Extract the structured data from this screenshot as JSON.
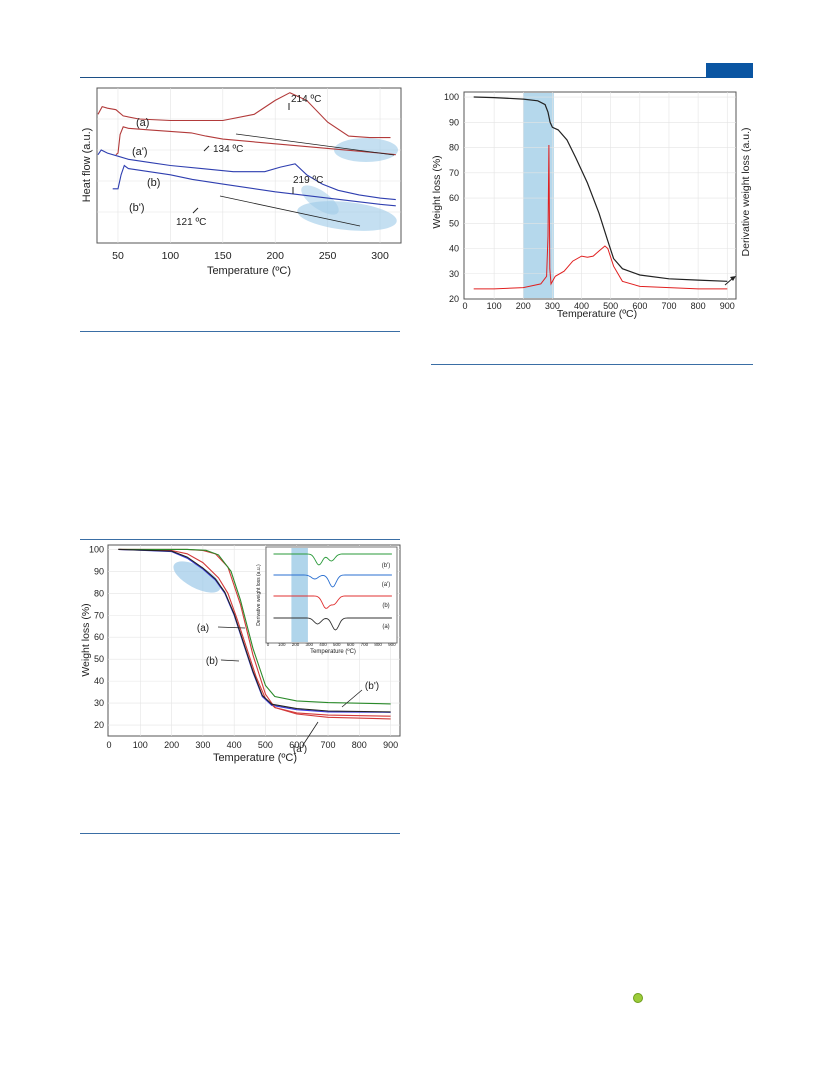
{
  "figures": [
    {
      "chart_data": {
        "type": "line",
        "xlabel": "Temperature (ºC)",
        "ylabel": "Heat flow (a.u.)",
        "xlim": [
          30,
          320
        ],
        "x_ticks": [
          "50",
          "100",
          "150",
          "200",
          "250",
          "300"
        ],
        "grid": true,
        "series": [
          {
            "name": "(a)",
            "color": "#b23a3a",
            "x": [
              31,
              35,
              40,
              48,
              55,
              70,
              100,
              150,
              180,
              200,
              214,
              230,
              250,
              270,
              290,
              310
            ],
            "y": [
              0.83,
              0.88,
              0.87,
              0.86,
              0.82,
              0.8,
              0.79,
              0.79,
              0.83,
              0.92,
              0.97,
              0.92,
              0.78,
              0.69,
              0.68,
              0.68
            ]
          },
          {
            "name": "(a')",
            "color": "#b23a3a",
            "x": [
              48,
              50,
              52,
              55,
              60,
              80,
              100,
              120,
              134,
              150,
              200,
              250,
              300,
              315
            ],
            "y": [
              0.57,
              0.58,
              0.7,
              0.75,
              0.74,
              0.73,
              0.72,
              0.71,
              0.69,
              0.67,
              0.64,
              0.61,
              0.58,
              0.57
            ]
          },
          {
            "name": "(b)",
            "color": "#2f3fb0",
            "x": [
              31,
              34,
              40,
              50,
              60,
              80,
              100,
              130,
              160,
              190,
              205,
              219,
              230,
              245,
              260,
              280,
              300,
              315
            ],
            "y": [
              0.57,
              0.6,
              0.58,
              0.56,
              0.54,
              0.52,
              0.5,
              0.48,
              0.46,
              0.46,
              0.49,
              0.51,
              0.44,
              0.38,
              0.34,
              0.31,
              0.29,
              0.28
            ]
          },
          {
            "name": "(b')",
            "color": "#2f3fb0",
            "x": [
              45,
              50,
              53,
              56,
              60,
              80,
              100,
              121,
              150,
              200,
              250,
              300,
              315
            ],
            "y": [
              0.35,
              0.35,
              0.44,
              0.5,
              0.48,
              0.46,
              0.44,
              0.41,
              0.38,
              0.33,
              0.29,
              0.25,
              0.24
            ]
          }
        ],
        "annotations": [
          "214 ºC",
          "134 ºC",
          "219 ºC",
          "121 ºC"
        ]
      }
    },
    {
      "chart_data": {
        "type": "line",
        "xlabel": "Temperature (ºC)",
        "ylabel": "Weight loss (%)",
        "y2label": "Derivative weight loss (a.u.)",
        "xlim": [
          0,
          930
        ],
        "ylim": [
          20,
          102
        ],
        "x_ticks": [
          "0",
          "100",
          "200",
          "300",
          "400",
          "500",
          "600",
          "700",
          "800",
          "900"
        ],
        "y_ticks": [
          "20",
          "30",
          "40",
          "50",
          "60",
          "70",
          "80",
          "90",
          "100"
        ],
        "grid": true,
        "highlight_band": [
          200,
          305
        ],
        "series": [
          {
            "name": "",
            "color": "#222222",
            "x": [
              30,
              100,
              200,
              250,
              275,
              285,
              292,
              300,
              320,
              350,
              380,
              420,
              460,
              490,
              510,
              540,
              600,
              700,
              800,
              900
            ],
            "y": [
              100,
              99.8,
              99.2,
              98.5,
              97,
              94,
              90,
              88,
              87,
              83,
              76,
              66,
              54,
              43,
              36,
              32,
              29.5,
              28,
              27.5,
              27
            ]
          },
          {
            "name": "",
            "color": "#e02020",
            "x": [
              30,
              100,
              200,
              260,
              280,
              285,
              288,
              291,
              295,
              310,
              340,
              370,
              400,
              420,
              440,
              460,
              480,
              490,
              510,
              540,
              600,
              700,
              800,
              900
            ],
            "y": [
              24,
              24,
              24.5,
              26,
              29,
              45,
              81,
              32,
              26,
              29,
              31,
              35,
              37,
              36.5,
              37,
              39,
              41,
              40,
              33,
              27,
              25,
              24.5,
              24,
              24
            ]
          }
        ]
      }
    },
    {
      "chart_data": {
        "type": "line",
        "xlabel": "Temperature (ºC)",
        "ylabel": "Weight loss (%)",
        "xlim": [
          0,
          930
        ],
        "ylim": [
          15,
          102
        ],
        "x_ticks": [
          "0",
          "100",
          "200",
          "300",
          "400",
          "500",
          "600",
          "700",
          "800",
          "900"
        ],
        "y_ticks": [
          "20",
          "30",
          "40",
          "50",
          "60",
          "70",
          "80",
          "90",
          "100"
        ],
        "grid": true,
        "series": [
          {
            "name": "(a)",
            "color": "#d33a3a",
            "x": [
              30,
              200,
              250,
              300,
              350,
              380,
              410,
              440,
              470,
              500,
              530,
              600,
              700,
              900
            ],
            "y": [
              100,
              99.5,
              98,
              94,
              87,
              80,
              68,
              55,
              42,
              32,
              28,
              25.5,
              24.5,
              24
            ]
          },
          {
            "name": "(b)",
            "color": "#3a3adf",
            "x": [
              30,
              200,
              250,
              300,
              340,
              370,
              400,
              430,
              460,
              490,
              520,
              600,
              700,
              900
            ],
            "y": [
              100,
              99,
              96,
              91,
              86,
              80,
              70,
              57,
              44,
              33,
              29,
              27,
              26,
              25.8
            ]
          },
          {
            "name": "(a')",
            "color": "#d33a3a",
            "x": [
              30,
              250,
              300,
              340,
              380,
              420,
              460,
              500,
              530,
              600,
              700,
              900
            ],
            "y": [
              100,
              100,
              99.5,
              98,
              92,
              75,
              52,
              34,
              28,
              25,
              23.5,
              22.8
            ]
          },
          {
            "name": "(b')",
            "color": "#2a8a2a",
            "x": [
              30,
              250,
              310,
              350,
              390,
              420,
              460,
              500,
              530,
              600,
              700,
              900
            ],
            "y": [
              100,
              100,
              99.6,
              97.5,
              90,
              77,
              55,
              38,
              33,
              31,
              30.2,
              29.6
            ]
          },
          {
            "name": "",
            "color": "#222222",
            "x": [
              30,
              200,
              250,
              300,
              340,
              370,
              400,
              430,
              460,
              490,
              520,
              600,
              700,
              900
            ],
            "y": [
              100,
              99.2,
              96.5,
              91.5,
              86.5,
              80.5,
              70.5,
              57.5,
              44.5,
              33.5,
              29.5,
              27.5,
              26.4,
              26
            ]
          }
        ],
        "annotations": [
          "(a)",
          "(b)",
          "(b')",
          "(a')"
        ],
        "inset": {
          "xlabel": "Temperature (ºC)",
          "ylabel": "Derivative weight loss (a.u.)",
          "x_ticks": [
            "0",
            "100",
            "200",
            "300",
            "400",
            "500",
            "600",
            "700",
            "800",
            "900"
          ],
          "highlight_band": [
            170,
            290
          ],
          "series_labels": [
            "(b')",
            "(a')",
            "(b)",
            "(a)"
          ]
        }
      }
    }
  ]
}
